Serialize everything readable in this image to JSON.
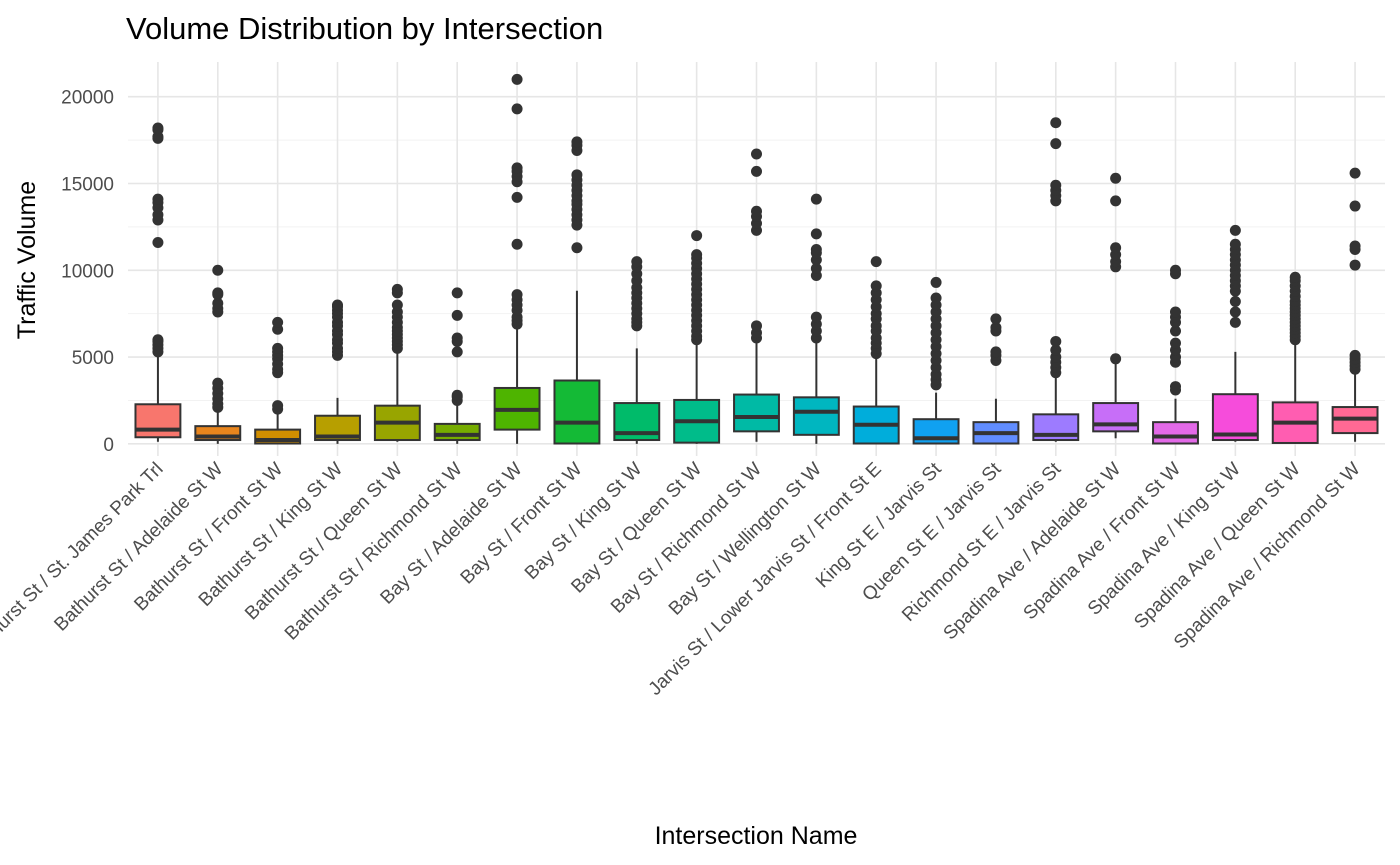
{
  "chart_data": {
    "type": "box",
    "title": "Volume Distribution by Intersection",
    "xlabel": "Intersection Name",
    "ylabel": "Traffic Volume",
    "ylim": [
      -700,
      22000
    ],
    "yticks": [
      0,
      5000,
      10000,
      15000,
      20000
    ],
    "grid": true,
    "legend": "none",
    "categories": [
      "Bathurst St / St. James Park Trl",
      "Bathurst St / Adelaide St W",
      "Bathurst St / Front St W",
      "Bathurst St / King St W",
      "Bathurst St / Queen St W",
      "Bathurst St / Richmond St W",
      "Bay St / Adelaide St W",
      "Bay St / Front St W",
      "Bay St / King St W",
      "Bay St / Queen St W",
      "Bay St / Richmond St W",
      "Bay St / Wellington St W",
      "Jarvis St / Lower Jarvis St / Front St E",
      "King St E / Jarvis St",
      "Queen St E / Jarvis St",
      "Richmond St E / Jarvis St",
      "Spadina Ave / Adelaide St W",
      "Spadina Ave / Front St W",
      "Spadina Ave / King St W",
      "Spadina Ave / Queen St W",
      "Spadina Ave / Richmond St W"
    ],
    "boxes": [
      {
        "min": 120,
        "q1": 380,
        "median": 820,
        "q3": 2280,
        "max": 5100,
        "color": "#F8766D",
        "outliers": [
          5300,
          5500,
          5700,
          5900,
          6000,
          11600,
          12900,
          13200,
          13600,
          13900,
          14100,
          17600,
          17700,
          18100,
          18200
        ]
      },
      {
        "min": 0,
        "q1": 220,
        "median": 420,
        "q3": 1020,
        "max": 1900,
        "color": "#E8851D",
        "outliers": [
          2100,
          2300,
          2600,
          2900,
          3200,
          3500,
          7600,
          7800,
          8100,
          8600,
          8700,
          10000
        ]
      },
      {
        "min": 0,
        "q1": 20,
        "median": 220,
        "q3": 820,
        "max": 1850,
        "color": "#D18E00",
        "outliers": [
          2000,
          2200,
          4100,
          4300,
          4600,
          4900,
          5100,
          5300,
          5500,
          6600,
          7000
        ]
      },
      {
        "min": 0,
        "q1": 220,
        "median": 420,
        "q3": 1620,
        "max": 2650,
        "color": "#B79F00",
        "outliers": [
          5100,
          5300,
          5500,
          5800,
          6000,
          6300,
          6500,
          6800,
          7000,
          7300,
          7500,
          7700,
          7900,
          8000
        ]
      },
      {
        "min": 120,
        "q1": 220,
        "median": 1220,
        "q3": 2200,
        "max": 5300,
        "color": "#98A500",
        "outliers": [
          5500,
          5700,
          5900,
          6100,
          6300,
          6500,
          6700,
          7000,
          7300,
          7600,
          8000,
          8700,
          8900
        ]
      },
      {
        "min": 0,
        "q1": 220,
        "median": 520,
        "q3": 1150,
        "max": 2300,
        "color": "#76AC00",
        "outliers": [
          2500,
          2700,
          2800,
          5300,
          5900,
          6100,
          7400,
          8700
        ]
      },
      {
        "min": 0,
        "q1": 820,
        "median": 1960,
        "q3": 3220,
        "max": 6700,
        "color": "#4EB400",
        "outliers": [
          6900,
          7100,
          7300,
          7700,
          8000,
          8300,
          8600,
          11500,
          14200,
          15100,
          15400,
          15700,
          15900,
          19300,
          21000
        ]
      },
      {
        "min": 0,
        "q1": 20,
        "median": 1220,
        "q3": 3650,
        "max": 8820,
        "color": "#14BA36",
        "outliers": [
          11300,
          12600,
          12900,
          13200,
          13500,
          13800,
          14000,
          14300,
          14600,
          14900,
          15200,
          15500,
          16900,
          17200,
          17400
        ]
      },
      {
        "min": 0,
        "q1": 220,
        "median": 620,
        "q3": 2350,
        "max": 5500,
        "color": "#00BB6A",
        "outliers": [
          6800,
          7000,
          7200,
          7500,
          7800,
          8100,
          8400,
          8700,
          9000,
          9400,
          9800,
          10200,
          10500
        ]
      },
      {
        "min": 0,
        "q1": 70,
        "median": 1300,
        "q3": 2530,
        "max": 5800,
        "color": "#00BC8A",
        "outliers": [
          6000,
          6200,
          6500,
          6800,
          7100,
          7400,
          7700,
          8000,
          8300,
          8600,
          8900,
          9200,
          9500,
          9800,
          10100,
          10400,
          10700,
          10900,
          12000
        ]
      },
      {
        "min": 120,
        "q1": 720,
        "median": 1550,
        "q3": 2840,
        "max": 5800,
        "color": "#00BAA5",
        "outliers": [
          6100,
          6400,
          6800,
          12300,
          12700,
          13100,
          13400,
          15700,
          16700
        ]
      },
      {
        "min": 0,
        "q1": 520,
        "median": 1850,
        "q3": 2680,
        "max": 5900,
        "color": "#00B6C0",
        "outliers": [
          6100,
          6500,
          6900,
          7300,
          9700,
          10100,
          10600,
          11000,
          11200,
          12100,
          14100
        ]
      },
      {
        "min": 0,
        "q1": 20,
        "median": 1100,
        "q3": 2150,
        "max": 5000,
        "color": "#00ADDB",
        "outliers": [
          5200,
          5500,
          5800,
          6100,
          6500,
          6800,
          7200,
          7500,
          7900,
          8300,
          8700,
          9100,
          10500
        ]
      },
      {
        "min": 0,
        "q1": 20,
        "median": 320,
        "q3": 1420,
        "max": 2950,
        "color": "#10A1F1",
        "outliers": [
          3400,
          3700,
          4000,
          4400,
          4800,
          5200,
          5600,
          6000,
          6400,
          6800,
          7200,
          7600,
          8000,
          8400,
          9300
        ]
      },
      {
        "min": 0,
        "q1": 20,
        "median": 620,
        "q3": 1250,
        "max": 2600,
        "color": "#618DFF",
        "outliers": [
          4800,
          5100,
          5300,
          6500,
          6700,
          7200
        ]
      },
      {
        "min": 120,
        "q1": 220,
        "median": 520,
        "q3": 1700,
        "max": 3800,
        "color": "#9D7BFF",
        "outliers": [
          4100,
          4400,
          4700,
          5000,
          5400,
          5900,
          14000,
          14300,
          14600,
          14900,
          17300,
          18500
        ]
      },
      {
        "min": 320,
        "q1": 720,
        "median": 1120,
        "q3": 2350,
        "max": 4600,
        "color": "#C76EF8",
        "outliers": [
          4900,
          10200,
          10500,
          10900,
          11300,
          14000,
          15300
        ]
      },
      {
        "min": 0,
        "q1": 20,
        "median": 420,
        "q3": 1250,
        "max": 2600,
        "color": "#E36AE8",
        "outliers": [
          3100,
          3300,
          4700,
          5000,
          5400,
          5800,
          6500,
          7000,
          7300,
          7600,
          9800,
          10000
        ]
      },
      {
        "min": 120,
        "q1": 220,
        "median": 540,
        "q3": 2860,
        "max": 5300,
        "color": "#F64CDB",
        "outliers": [
          7000,
          7600,
          8200,
          8800,
          9100,
          9400,
          9700,
          10000,
          10300,
          10600,
          10900,
          11200,
          11500,
          12300
        ]
      },
      {
        "min": 0,
        "q1": 50,
        "median": 1220,
        "q3": 2390,
        "max": 5800,
        "color": "#FF5DB1",
        "outliers": [
          6000,
          6200,
          6400,
          6600,
          6800,
          7000,
          7200,
          7400,
          7600,
          7800,
          8000,
          8200,
          8500,
          8800,
          9100,
          9400,
          9600
        ]
      },
      {
        "min": 120,
        "q1": 620,
        "median": 1450,
        "q3": 2120,
        "max": 4100,
        "color": "#FF6994",
        "outliers": [
          4300,
          4500,
          4700,
          4900,
          5100,
          10300,
          11200,
          11400,
          13700,
          15600
        ]
      }
    ]
  }
}
